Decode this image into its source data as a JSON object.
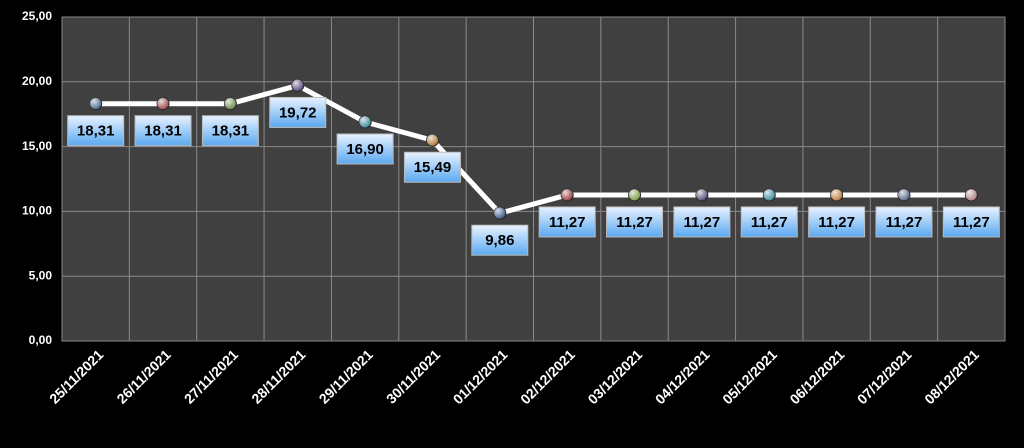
{
  "chart_data": {
    "type": "line",
    "categories": [
      "25/11/2021",
      "26/11/2021",
      "27/11/2021",
      "28/11/2021",
      "29/11/2021",
      "30/11/2021",
      "01/12/2021",
      "02/12/2021",
      "03/12/2021",
      "04/12/2021",
      "05/12/2021",
      "06/12/2021",
      "07/12/2021",
      "08/12/2021"
    ],
    "values": [
      18.31,
      18.31,
      18.31,
      19.72,
      16.9,
      15.49,
      9.86,
      11.27,
      11.27,
      11.27,
      11.27,
      11.27,
      11.27,
      11.27
    ],
    "value_labels": [
      "18,31",
      "18,31",
      "18,31",
      "19,72",
      "16,90",
      "15,49",
      "9,86",
      "11,27",
      "11,27",
      "11,27",
      "11,27",
      "11,27",
      "11,27",
      "11,27"
    ],
    "color": "#ffffff",
    "marker_colors": [
      "#4a6a8a",
      "#9a4a4a",
      "#6a8a4a",
      "#5a4a7a",
      "#3a8a9a",
      "#b07a3a",
      "#3a5a8a",
      "#a04040",
      "#7a9a4a",
      "#5a4a7a",
      "#3a8a9a",
      "#c08040",
      "#5a6a8a",
      "#b08080"
    ],
    "ylim": [
      0,
      25
    ],
    "yticks": [
      {
        "value": 0,
        "label": "0,00"
      },
      {
        "value": 5,
        "label": "5,00"
      },
      {
        "value": 10,
        "label": "10,00"
      },
      {
        "value": 15,
        "label": "15,00"
      },
      {
        "value": 20,
        "label": "20,00"
      },
      {
        "value": 25,
        "label": "25,00"
      }
    ],
    "grid": true
  }
}
